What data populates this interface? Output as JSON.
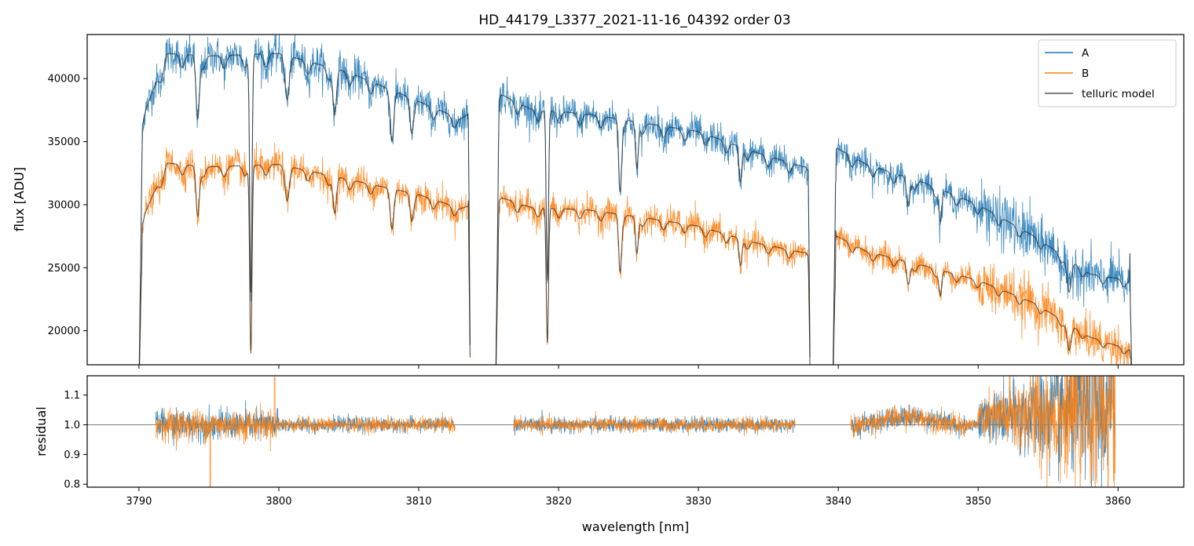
{
  "chart_data": {
    "type": "line",
    "title": "HD_44179_L3377_2021-11-16_04392  order 03",
    "xlabel": "wavelength [nm]",
    "xlim": [
      3786.3,
      3864.7
    ],
    "xticks": [
      3790,
      3800,
      3810,
      3820,
      3830,
      3840,
      3850,
      3860
    ],
    "xtick_labels": [
      "3790",
      "3800",
      "3810",
      "3820",
      "3830",
      "3840",
      "3850",
      "3860"
    ],
    "legend": {
      "placement": "top-right",
      "entries": [
        {
          "label": "A",
          "color": "#1f77b4"
        },
        {
          "label": "B",
          "color": "#ff7f0e"
        },
        {
          "label": "telluric model",
          "color": "#555555"
        }
      ]
    },
    "top_panel": {
      "ylabel": "flux [ADU]",
      "ylim": [
        17300,
        43500
      ],
      "yticks": [
        20000,
        25000,
        30000,
        35000,
        40000
      ],
      "ytick_labels": [
        "20000",
        "25000",
        "30000",
        "35000",
        "40000"
      ],
      "segments": [
        {
          "start": 3790.0,
          "end": 3813.7
        },
        {
          "start": 3815.5,
          "end": 3838.0
        },
        {
          "start": 3839.6,
          "end": 3861.0
        }
      ],
      "series": [
        {
          "name": "A",
          "color": "#1f77b4",
          "x": [
            3790.3,
            3792,
            3795,
            3800,
            3805,
            3810,
            3813,
            3815.8,
            3818,
            3822,
            3826,
            3830,
            3834,
            3837.5,
            3839.9,
            3842,
            3846,
            3850,
            3854,
            3858,
            3860.8
          ],
          "y": [
            37000,
            42000,
            41800,
            42000,
            40500,
            38200,
            36800,
            38800,
            37600,
            37200,
            36500,
            35800,
            34200,
            33000,
            34500,
            33200,
            31800,
            30000,
            27500,
            24500,
            24000
          ]
        },
        {
          "name": "B",
          "color": "#ff7f0e",
          "x": [
            3790.3,
            3792,
            3795,
            3800,
            3805,
            3810,
            3813,
            3815.8,
            3818,
            3822,
            3826,
            3830,
            3834,
            3837.5,
            3839.9,
            3842,
            3846,
            3850,
            3854,
            3858,
            3860.8
          ],
          "y": [
            29000,
            33300,
            33000,
            33200,
            32000,
            30800,
            29700,
            30600,
            29800,
            29600,
            29000,
            28300,
            27000,
            26200,
            27500,
            26300,
            25200,
            24000,
            22200,
            19500,
            18500
          ]
        }
      ],
      "model_dips": [
        {
          "x": 3794.2,
          "depth": 0.12,
          "width": 0.12
        },
        {
          "x": 3798.0,
          "depth": 0.45,
          "width": 0.08
        },
        {
          "x": 3800.6,
          "depth": 0.06,
          "width": 0.15
        },
        {
          "x": 3804.0,
          "depth": 0.09,
          "width": 0.12
        },
        {
          "x": 3808.1,
          "depth": 0.08,
          "width": 0.12
        },
        {
          "x": 3809.5,
          "depth": 0.05,
          "width": 0.12
        },
        {
          "x": 3819.2,
          "depth": 0.36,
          "width": 0.08
        },
        {
          "x": 3824.4,
          "depth": 0.14,
          "width": 0.1
        },
        {
          "x": 3825.6,
          "depth": 0.1,
          "width": 0.1
        },
        {
          "x": 3833.0,
          "depth": 0.08,
          "width": 0.1
        },
        {
          "x": 3845.0,
          "depth": 0.07,
          "width": 0.12
        },
        {
          "x": 3847.3,
          "depth": 0.08,
          "width": 0.1
        },
        {
          "x": 3856.5,
          "depth": 0.1,
          "width": 0.15
        }
      ]
    },
    "bottom_panel": {
      "ylabel": "residual",
      "ylim": [
        0.79,
        1.165
      ],
      "yticks": [
        0.8,
        0.9,
        1.0,
        1.1
      ],
      "ytick_labels": [
        "0.8",
        "0.9",
        "1.0",
        "1.1"
      ],
      "reference_line": 1.0,
      "segments": [
        {
          "start": 3791.2,
          "end": 3812.6
        },
        {
          "start": 3816.8,
          "end": 3836.9
        },
        {
          "start": 3840.9,
          "end": 3859.8
        }
      ],
      "series": [
        {
          "name": "A",
          "color": "#1f77b4"
        },
        {
          "name": "B",
          "color": "#ff7f0e"
        }
      ]
    }
  }
}
